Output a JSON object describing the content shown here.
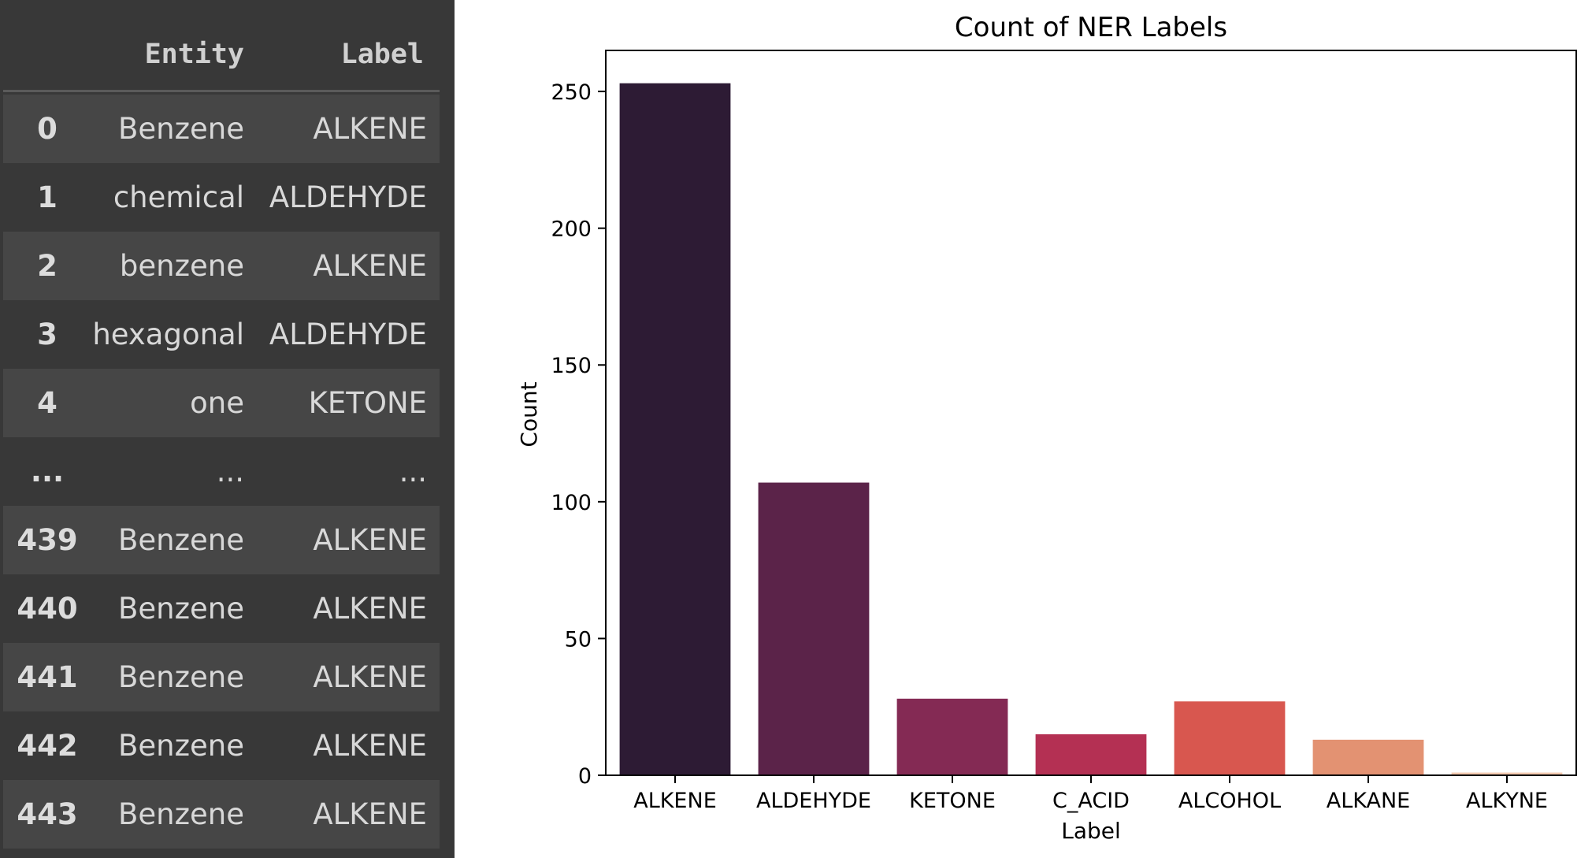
{
  "dataframe": {
    "columns": [
      "Entity",
      "Label"
    ],
    "rows": [
      {
        "index": "0",
        "entity": "Benzene",
        "label": "ALKENE"
      },
      {
        "index": "1",
        "entity": "chemical",
        "label": "ALDEHYDE"
      },
      {
        "index": "2",
        "entity": "benzene",
        "label": "ALKENE"
      },
      {
        "index": "3",
        "entity": "hexagonal",
        "label": "ALDEHYDE"
      },
      {
        "index": "4",
        "entity": "one",
        "label": "KETONE"
      },
      {
        "index": "...",
        "entity": "...",
        "label": "..."
      },
      {
        "index": "439",
        "entity": "Benzene",
        "label": "ALKENE"
      },
      {
        "index": "440",
        "entity": "Benzene",
        "label": "ALKENE"
      },
      {
        "index": "441",
        "entity": "Benzene",
        "label": "ALKENE"
      },
      {
        "index": "442",
        "entity": "Benzene",
        "label": "ALKENE"
      },
      {
        "index": "443",
        "entity": "Benzene",
        "label": "ALKENE"
      }
    ]
  },
  "chart_data": {
    "type": "bar",
    "title": "Count of NER Labels",
    "xlabel": "Label",
    "ylabel": "Count",
    "categories": [
      "ALKENE",
      "ALDEHYDE",
      "KETONE",
      "C_ACID",
      "ALCOHOL",
      "ALKANE",
      "ALKYNE"
    ],
    "values": [
      253,
      107,
      28,
      15,
      27,
      13,
      1
    ],
    "colors": [
      "#2d1b34",
      "#5b2349",
      "#842a54",
      "#b43053",
      "#d8574f",
      "#e39272",
      "#f3c9b0"
    ],
    "ylim": [
      0,
      265
    ],
    "yticks": [
      0,
      50,
      100,
      150,
      200,
      250
    ],
    "grid": false,
    "legend": "none"
  }
}
